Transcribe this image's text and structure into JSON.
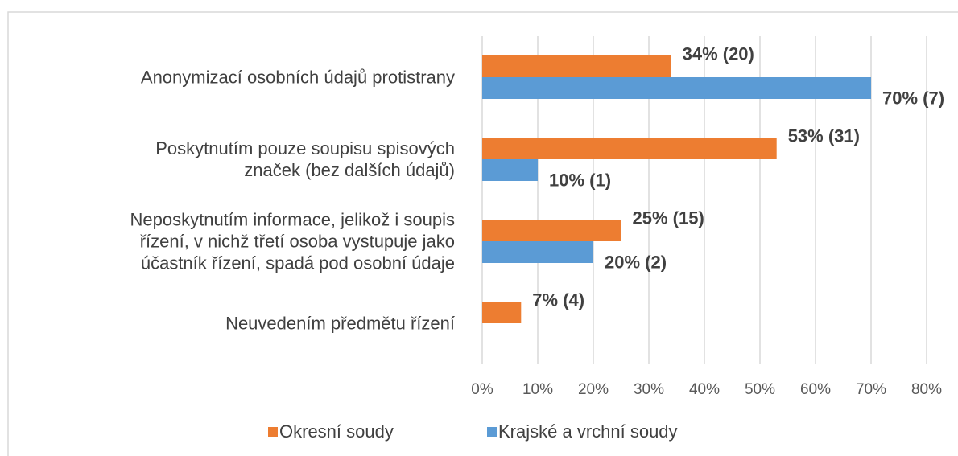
{
  "chart_data": {
    "type": "bar",
    "orientation": "horizontal",
    "categories": [
      "Anonymizací osobních údajů protistrany",
      "Poskytnutím pouze soupisu spisových\nznaček (bez dalších údajů)",
      "Neposkytnutím informace, jelikož i soupis\nřízení, v nichž třetí osoba vystupuje jako\núčastník řízení, spadá pod osobní údaje",
      "Neuvedením předmětu řízení"
    ],
    "series": [
      {
        "name": "Okresní soudy",
        "color": "#ED7D31",
        "values": [
          34,
          53,
          25,
          7
        ],
        "value_labels": [
          "34% (20)",
          "53% (31)",
          "25% (15)",
          "7% (4)"
        ]
      },
      {
        "name": "Krajské a vrchní soudy",
        "color": "#5B9BD5",
        "values": [
          70,
          10,
          20,
          null
        ],
        "value_labels": [
          "70% (7)",
          "10% (1)",
          "20% (2)",
          null
        ]
      }
    ],
    "xlim": [
      0,
      80
    ],
    "xticks": [
      {
        "value": 0,
        "label": "0%"
      },
      {
        "value": 10,
        "label": "10%"
      },
      {
        "value": 20,
        "label": "20%"
      },
      {
        "value": 30,
        "label": "30%"
      },
      {
        "value": 40,
        "label": "40%"
      },
      {
        "value": 50,
        "label": "50%"
      },
      {
        "value": 60,
        "label": "60%"
      },
      {
        "value": 70,
        "label": "70%"
      },
      {
        "value": 80,
        "label": "80%"
      }
    ],
    "grid": true,
    "legend": "bottom"
  }
}
